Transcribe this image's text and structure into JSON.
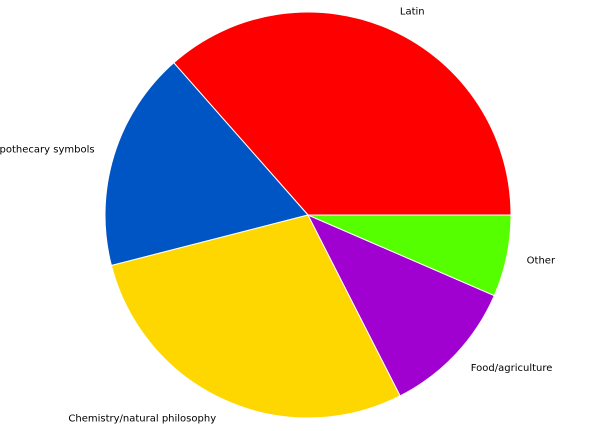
{
  "chart_data": {
    "type": "pie",
    "title": "",
    "start_angle_deg": 0,
    "direction": "counterclockwise",
    "slices": [
      {
        "label": "Latin",
        "value": 36.5,
        "color": "#ff0000"
      },
      {
        "label": "Apothecary symbols",
        "value": 17.5,
        "color": "#0055c4"
      },
      {
        "label": "Chemistry/natural philosophy",
        "value": 28.5,
        "color": "#ffd700"
      },
      {
        "label": "Food/agriculture",
        "value": 11.0,
        "color": "#a000d0"
      },
      {
        "label": "Other",
        "value": 6.5,
        "color": "#55ff00"
      }
    ]
  }
}
